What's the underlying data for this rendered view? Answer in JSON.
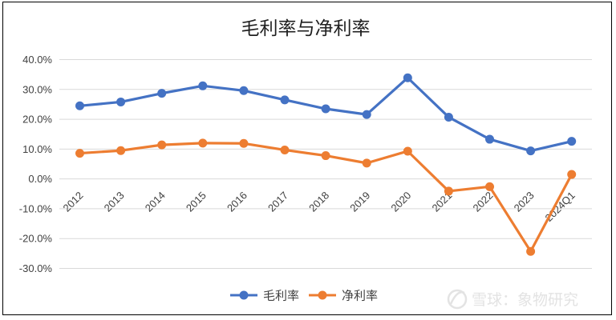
{
  "chart_data": {
    "type": "line",
    "title": "毛利率与净利率",
    "xlabel": "",
    "ylabel": "",
    "categories": [
      "2012",
      "2013",
      "2014",
      "2015",
      "2016",
      "2017",
      "2018",
      "2019",
      "2020",
      "2021",
      "2022",
      "2023",
      "2024Q1"
    ],
    "yticks": [
      "40.0%",
      "30.0%",
      "20.0%",
      "10.0%",
      "0.0%",
      "-10.0%",
      "-20.0%",
      "-30.0%"
    ],
    "ylim": [
      -30,
      40
    ],
    "grid": true,
    "legend": "bottom",
    "series": [
      {
        "name": "毛利率",
        "color": "#4472c4",
        "values": [
          24.5,
          25.8,
          28.7,
          31.2,
          29.6,
          26.5,
          23.5,
          21.6,
          33.9,
          20.7,
          13.3,
          9.4,
          12.6
        ]
      },
      {
        "name": "净利率",
        "color": "#ed7d31",
        "values": [
          8.6,
          9.5,
          11.4,
          12.0,
          11.9,
          9.7,
          7.8,
          5.3,
          9.3,
          -4.1,
          -2.6,
          -24.3,
          1.5
        ]
      }
    ]
  },
  "watermark": {
    "icon": "snowball-logo-icon",
    "text": "雪球：象物研究"
  }
}
